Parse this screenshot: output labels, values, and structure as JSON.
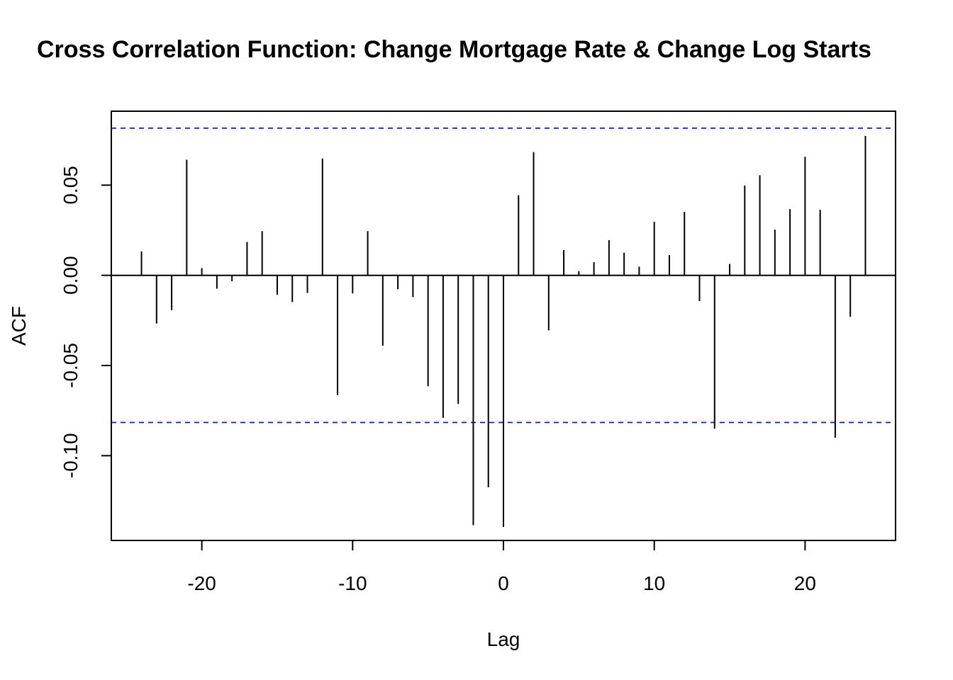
{
  "chart_data": {
    "type": "bar",
    "title": "Cross Correlation Function: Change Mortgage Rate & Change Log Starts",
    "xlabel": "Lag",
    "ylabel": "ACF",
    "xlim": [
      -26,
      26
    ],
    "ylim": [
      -0.147,
      0.091
    ],
    "x_ticks": [
      -20,
      -10,
      0,
      10,
      20
    ],
    "x_tick_labels": [
      "-20",
      "-10",
      "0",
      "10",
      "20"
    ],
    "y_ticks": [
      -0.1,
      -0.05,
      0.0,
      0.05
    ],
    "y_tick_labels": [
      "-0.10",
      "-0.05",
      "0.00",
      "0.05"
    ],
    "grid": false,
    "confidence_bound": 0.0816,
    "confidence_color": "#0000ff",
    "bar_color": "#000000",
    "lags": [
      -24,
      -23,
      -22,
      -21,
      -20,
      -19,
      -18,
      -17,
      -16,
      -15,
      -14,
      -13,
      -12,
      -11,
      -10,
      -9,
      -8,
      -7,
      -6,
      -5,
      -4,
      -3,
      -2,
      -1,
      0,
      1,
      2,
      3,
      4,
      5,
      6,
      7,
      8,
      9,
      10,
      11,
      12,
      13,
      14,
      15,
      16,
      17,
      18,
      19,
      20,
      21,
      22,
      23,
      24
    ],
    "values": [
      0.0133,
      -0.0267,
      -0.0193,
      0.0641,
      0.004,
      -0.0074,
      -0.0033,
      0.0185,
      0.0245,
      -0.0108,
      -0.0148,
      -0.0098,
      0.0648,
      -0.0664,
      -0.01,
      0.0245,
      -0.039,
      -0.0077,
      -0.0121,
      -0.0615,
      -0.079,
      -0.0713,
      -0.1385,
      -0.1175,
      -0.1395,
      0.0444,
      0.0683,
      -0.0305,
      0.014,
      0.0023,
      0.0073,
      0.0195,
      0.0126,
      0.0048,
      0.0297,
      0.0113,
      0.0352,
      -0.0143,
      -0.085,
      0.0063,
      0.0498,
      0.0555,
      0.0253,
      0.0367,
      0.0657,
      0.0363,
      -0.09,
      -0.023,
      0.0773
    ]
  }
}
